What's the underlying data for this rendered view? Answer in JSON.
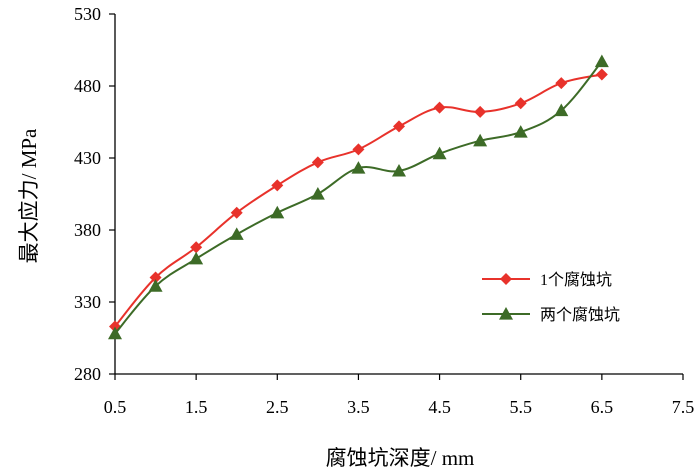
{
  "chart_data": {
    "type": "line",
    "title": "",
    "xlabel": "腐蚀坑深度/ mm",
    "ylabel": "最大应力/ MPa",
    "xlim": [
      0.5,
      7.5
    ],
    "ylim": [
      280,
      530
    ],
    "xticks": [
      "0.5",
      "1.5",
      "2.5",
      "3.5",
      "4.5",
      "5.5",
      "6.5",
      "7.5"
    ],
    "yticks": [
      "280",
      "330",
      "380",
      "430",
      "480",
      "530"
    ],
    "grid": false,
    "legend_position": "right",
    "series": [
      {
        "name": "1个腐蚀坑",
        "color": "#e8322b",
        "marker": "diamond",
        "x": [
          0.5,
          1.0,
          1.5,
          2.0,
          2.5,
          3.0,
          3.5,
          4.0,
          4.5,
          5.0,
          5.5,
          6.0,
          6.5
        ],
        "values": [
          313,
          347,
          368,
          392,
          411,
          427,
          436,
          452,
          465,
          462,
          468,
          482,
          488
        ]
      },
      {
        "name": "两个腐蚀坑",
        "color": "#3d6b27",
        "marker": "triangle",
        "x": [
          0.5,
          1.0,
          1.5,
          2.0,
          2.5,
          3.0,
          3.5,
          4.0,
          4.5,
          5.0,
          5.5,
          6.0,
          6.5
        ],
        "values": [
          308,
          341,
          360,
          377,
          392,
          405,
          423,
          421,
          433,
          442,
          448,
          463,
          497
        ]
      }
    ]
  }
}
